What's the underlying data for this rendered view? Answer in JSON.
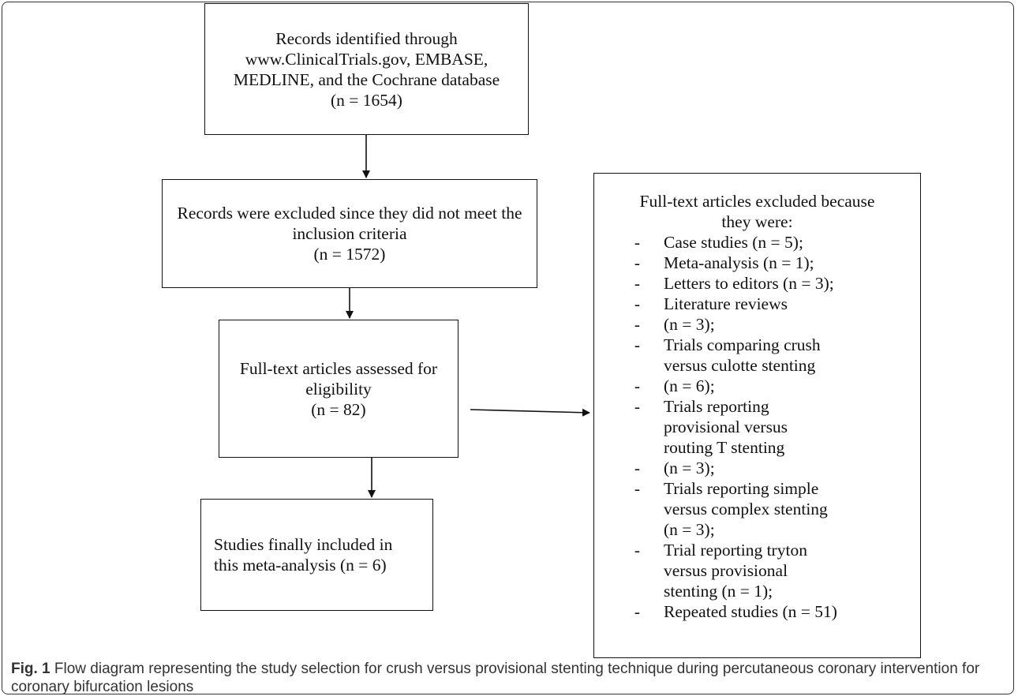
{
  "boxes": {
    "identified": [
      "Records identified through",
      "www.ClinicalTrials.gov, EMBASE,",
      "MEDLINE, and the Cochrane database",
      "(n = 1654)"
    ],
    "excluded": [
      "Records were excluded since they did not meet the",
      "inclusion criteria",
      "(n = 1572)"
    ],
    "assessed": [
      "Full-text articles assessed for",
      "eligibility",
      "(n = 82)"
    ],
    "included": [
      "Studies finally included in",
      "this meta-analysis (n = 6)"
    ]
  },
  "reasons": {
    "heading": [
      "Full-text articles excluded because",
      "they were:"
    ],
    "dash": "-",
    "items": [
      "Case studies (n = 5);",
      "Meta-analysis (n = 1);",
      "Letters to editors (n = 3);",
      "Literature reviews",
      "(n = 3);",
      "Trials comparing crush",
      "versus culotte stenting",
      "(n = 6);",
      "Trials reporting",
      "provisional versus",
      "routing T stenting",
      "(n = 3);",
      "Trials reporting simple",
      "versus complex stenting",
      "(n = 3);",
      "Trial reporting tryton",
      "versus provisional",
      "stenting (n = 1);",
      "Repeated studies (n = 51)"
    ],
    "dash_flags": [
      true,
      true,
      true,
      true,
      true,
      true,
      false,
      true,
      true,
      false,
      false,
      true,
      true,
      false,
      false,
      true,
      false,
      false,
      true
    ]
  },
  "caption": {
    "label": "Fig. 1",
    "text": " Flow diagram representing the study selection for crush versus provisional stenting technique during percutaneous coronary intervention for coronary bifurcation lesions"
  }
}
